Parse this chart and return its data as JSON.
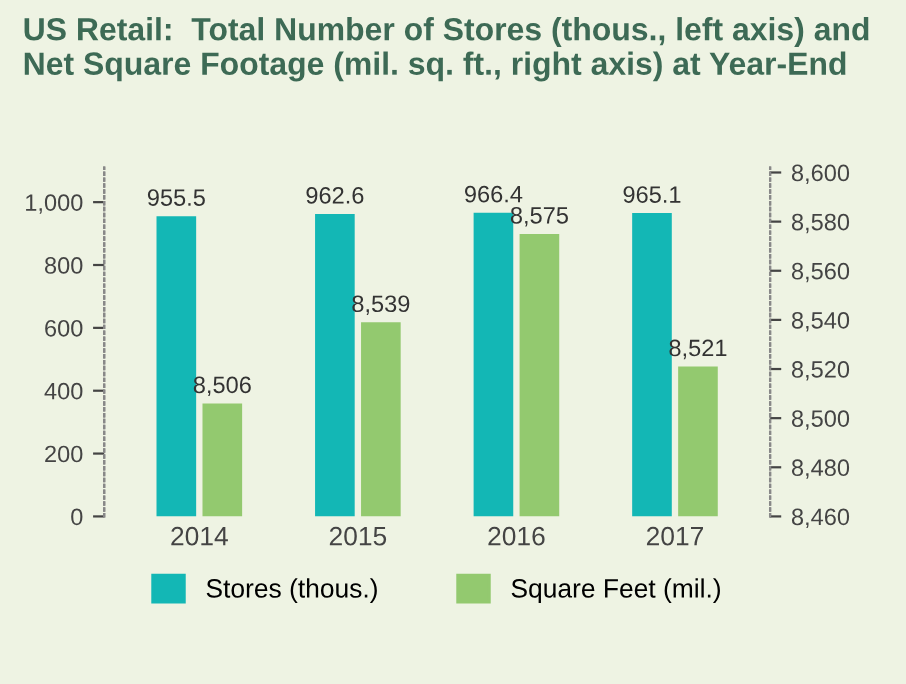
{
  "chart_data": {
    "type": "bar",
    "title": "US Retail:  Total Number of Stores (thous., left axis) and Net Square Footage (mil. sq. ft., right axis) at Year-End",
    "categories": [
      "2014",
      "2015",
      "2016",
      "2017"
    ],
    "series": [
      {
        "name": "Stores (thous.)",
        "color": "#13b7b5",
        "values": [
          955.5,
          962.6,
          966.4,
          965.1
        ],
        "value_labels": [
          "955.5",
          "962.6",
          "966.4",
          "965.1"
        ]
      },
      {
        "name": "Square Feet (mil.)",
        "color": "#93c96f",
        "values": [
          8506,
          8539,
          8575,
          8521
        ],
        "axis": "y2",
        "value_labels": [
          "8,506",
          "8,539",
          "8,575",
          "8,521"
        ]
      }
    ],
    "ylim": [
      0,
      1110
    ],
    "yticks": [
      {
        "value": 0,
        "label": "0"
      },
      {
        "value": 200,
        "label": "200"
      },
      {
        "value": 400,
        "label": "400"
      },
      {
        "value": 600,
        "label": "600"
      },
      {
        "value": 800,
        "label": "800"
      },
      {
        "value": 1000,
        "label": "1,000"
      }
    ],
    "y2lim": [
      8460,
      8602
    ],
    "y2ticks": [
      {
        "value": 8460,
        "label": "8,460"
      },
      {
        "value": 8480,
        "label": "8,480"
      },
      {
        "value": 8500,
        "label": "8,500"
      },
      {
        "value": 8520,
        "label": "8,520"
      },
      {
        "value": 8540,
        "label": "8,540"
      },
      {
        "value": 8560,
        "label": "8,560"
      },
      {
        "value": 8580,
        "label": "8,580"
      },
      {
        "value": 8600,
        "label": "8,600"
      }
    ],
    "legend": "bottom",
    "grid": false
  }
}
